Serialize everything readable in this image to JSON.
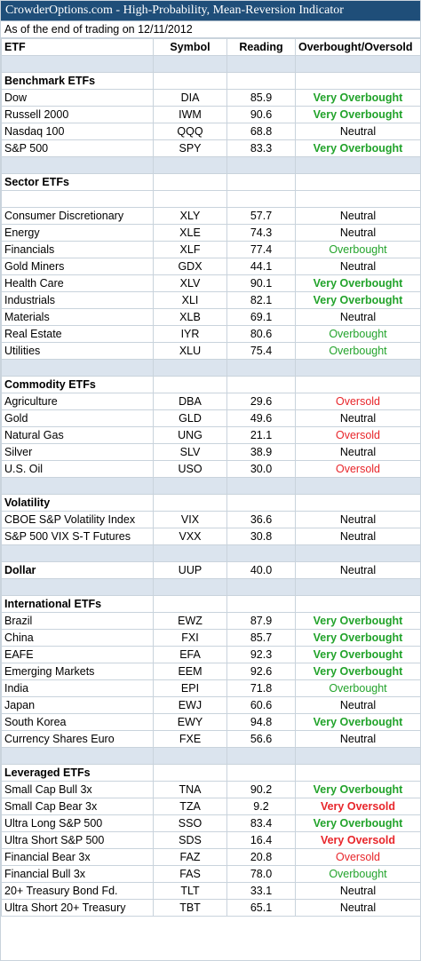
{
  "title": "CrowderOptions.com - High-Probability, Mean-Reversion Indicator",
  "subtitle": "As of the end of trading on 12/11/2012",
  "columns": [
    "ETF",
    "Symbol",
    "Reading",
    "Overbought/Oversold"
  ],
  "colors": {
    "header_bg": "#1f4e79",
    "blank_row_bg": "#dbe4ee",
    "overbought": "#22a32b",
    "oversold": "#e8262b"
  },
  "sections": [
    {
      "name": "Benchmark ETFs",
      "leading_blank": false,
      "rows": [
        {
          "name": "Dow",
          "symbol": "DIA",
          "reading": "85.9",
          "status": "Very Overbought"
        },
        {
          "name": "Russell 2000",
          "symbol": "IWM",
          "reading": "90.6",
          "status": "Very Overbought"
        },
        {
          "name": "Nasdaq 100",
          "symbol": "QQQ",
          "reading": "68.8",
          "status": "Neutral"
        },
        {
          "name": "S&P 500",
          "symbol": "SPY",
          "reading": "83.3",
          "status": "Very Overbought"
        }
      ]
    },
    {
      "name": "Sector ETFs",
      "leading_blank": true,
      "rows": [
        {
          "name": "Consumer Discretionary",
          "symbol": "XLY",
          "reading": "57.7",
          "status": "Neutral"
        },
        {
          "name": "Energy",
          "symbol": "XLE",
          "reading": "74.3",
          "status": "Neutral"
        },
        {
          "name": "Financials",
          "symbol": "XLF",
          "reading": "77.4",
          "status": "Overbought"
        },
        {
          "name": "Gold Miners",
          "symbol": "GDX",
          "reading": "44.1",
          "status": "Neutral"
        },
        {
          "name": "Health Care",
          "symbol": "XLV",
          "reading": "90.1",
          "status": "Very Overbought"
        },
        {
          "name": "Industrials",
          "symbol": "XLI",
          "reading": "82.1",
          "status": "Very Overbought"
        },
        {
          "name": "Materials",
          "symbol": "XLB",
          "reading": "69.1",
          "status": "Neutral"
        },
        {
          "name": "Real Estate",
          "symbol": "IYR",
          "reading": "80.6",
          "status": "Overbought"
        },
        {
          "name": "Utilities",
          "symbol": "XLU",
          "reading": "75.4",
          "status": "Overbought"
        }
      ]
    },
    {
      "name": "Commodity ETFs",
      "leading_blank": false,
      "rows": [
        {
          "name": "Agriculture",
          "symbol": "DBA",
          "reading": "29.6",
          "status": "Oversold"
        },
        {
          "name": "Gold",
          "symbol": "GLD",
          "reading": "49.6",
          "status": "Neutral"
        },
        {
          "name": "Natural Gas",
          "symbol": "UNG",
          "reading": "21.1",
          "status": "Oversold"
        },
        {
          "name": "Silver",
          "symbol": "SLV",
          "reading": "38.9",
          "status": "Neutral"
        },
        {
          "name": "U.S. Oil",
          "symbol": "USO",
          "reading": "30.0",
          "status": "Oversold"
        }
      ]
    },
    {
      "name": "Volatility",
      "leading_blank": false,
      "rows": [
        {
          "name": "CBOE S&P Volatility Index",
          "symbol": "VIX",
          "reading": "36.6",
          "status": "Neutral"
        },
        {
          "name": "S&P 500 VIX S-T Futures",
          "symbol": "VXX",
          "reading": "30.8",
          "status": "Neutral"
        }
      ]
    },
    {
      "name": "Dollar",
      "leading_blank": false,
      "inline": {
        "symbol": "UUP",
        "reading": "40.0",
        "status": "Neutral"
      },
      "rows": []
    },
    {
      "name": "International ETFs",
      "leading_blank": false,
      "rows": [
        {
          "name": "Brazil",
          "symbol": "EWZ",
          "reading": "87.9",
          "status": "Very Overbought"
        },
        {
          "name": "China",
          "symbol": "FXI",
          "reading": "85.7",
          "status": "Very Overbought"
        },
        {
          "name": "EAFE",
          "symbol": "EFA",
          "reading": "92.3",
          "status": "Very Overbought"
        },
        {
          "name": "Emerging Markets",
          "symbol": "EEM",
          "reading": "92.6",
          "status": "Very Overbought"
        },
        {
          "name": "India",
          "symbol": "EPI",
          "reading": "71.8",
          "status": "Overbought"
        },
        {
          "name": "Japan",
          "symbol": "EWJ",
          "reading": "60.6",
          "status": "Neutral"
        },
        {
          "name": "South Korea",
          "symbol": "EWY",
          "reading": "94.8",
          "status": "Very Overbought"
        },
        {
          "name": "Currency Shares Euro",
          "symbol": "FXE",
          "reading": "56.6",
          "status": "Neutral"
        }
      ]
    },
    {
      "name": "Leveraged ETFs",
      "leading_blank": false,
      "rows": [
        {
          "name": "Small Cap Bull 3x",
          "symbol": "TNA",
          "reading": "90.2",
          "status": "Very Overbought"
        },
        {
          "name": "Small Cap Bear 3x",
          "symbol": "TZA",
          "reading": "9.2",
          "status": "Very Oversold"
        },
        {
          "name": "Ultra Long S&P 500",
          "symbol": "SSO",
          "reading": "83.4",
          "status": "Very Overbought"
        },
        {
          "name": "Ultra Short S&P 500",
          "symbol": "SDS",
          "reading": "16.4",
          "status": "Very Oversold"
        },
        {
          "name": "Financial Bear 3x",
          "symbol": "FAZ",
          "reading": "20.8",
          "status": "Oversold"
        },
        {
          "name": "Financial Bull 3x",
          "symbol": "FAS",
          "reading": "78.0",
          "status": "Overbought"
        },
        {
          "name": "20+ Treasury Bond Fd.",
          "symbol": "TLT",
          "reading": "33.1",
          "status": "Neutral"
        },
        {
          "name": "Ultra Short 20+ Treasury",
          "symbol": "TBT",
          "reading": "65.1",
          "status": "Neutral"
        }
      ]
    }
  ]
}
